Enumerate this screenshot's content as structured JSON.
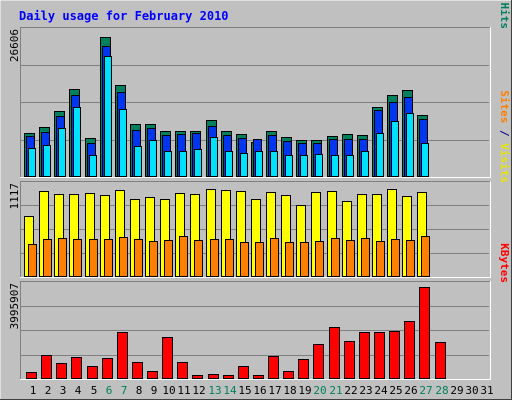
{
  "chart_data": {
    "type": "bar",
    "title": "Daily usage for February 2010",
    "days": [
      "1",
      "2",
      "3",
      "4",
      "5",
      "6",
      "7",
      "8",
      "9",
      "10",
      "11",
      "12",
      "13",
      "14",
      "15",
      "16",
      "17",
      "18",
      "19",
      "20",
      "21",
      "22",
      "23",
      "24",
      "25",
      "26",
      "27",
      "28",
      "29",
      "30",
      "31"
    ],
    "weekend_days": [
      "6",
      "7",
      "13",
      "14",
      "20",
      "21",
      "27",
      "28"
    ],
    "panels": [
      {
        "id": "hits",
        "ymax_label": "26606",
        "ymax": 26606,
        "right_labels": [
          {
            "text": "Pages",
            "color": "#00c8e6"
          },
          {
            "text": " / ",
            "color": "#000080"
          },
          {
            "text": "Files",
            "color": "#0040ff"
          },
          {
            "text": " / ",
            "color": "#000080"
          },
          {
            "text": "Hits",
            "color": "#008060"
          }
        ],
        "series": [
          {
            "name": "Hits",
            "color": "#00805c",
            "values": [
              8000,
              9200,
              12200,
              16100,
              7100,
              25600,
              16900,
              9800,
              9700,
              8400,
              8400,
              8500,
              10500,
              8400,
              7800,
              6400,
              8400,
              7300,
              6700,
              6800,
              7500,
              7800,
              7700,
              12900,
              15000,
              16000,
              11300,
              null,
              null,
              null,
              null
            ]
          },
          {
            "name": "Files",
            "color": "#0036f0",
            "values": [
              7500,
              8300,
              11200,
              15000,
              6200,
              24000,
              15600,
              8700,
              9000,
              7700,
              7900,
              8000,
              9300,
              7700,
              7100,
              7000,
              7700,
              6600,
              6200,
              6300,
              7000,
              7000,
              7000,
              12300,
              13800,
              14700,
              10700,
              null,
              null,
              null,
              null
            ]
          },
          {
            "name": "Pages",
            "color": "#00e0ff",
            "values": [
              5400,
              5900,
              9000,
              12800,
              4100,
              22200,
              12400,
              5700,
              6700,
              4800,
              4700,
              5200,
              7400,
              4800,
              4400,
              4700,
              4800,
              4000,
              4100,
              4200,
              4100,
              4000,
              4800,
              8000,
              10200,
              11800,
              6200,
              null,
              null,
              null,
              null
            ]
          }
        ]
      },
      {
        "id": "visits",
        "ymax_label": "1117",
        "ymax": 1117,
        "right_labels": [
          {
            "text": "Sites",
            "color": "#ff8000"
          },
          {
            "text": " / ",
            "color": "#000080"
          },
          {
            "text": "Visits",
            "color": "#e6e600"
          }
        ],
        "series": [
          {
            "name": "Visits",
            "color": "#ffff00",
            "values": [
              750,
              1050,
              1020,
              1020,
              1030,
              1010,
              1070,
              960,
              980,
              960,
              1030,
              1020,
              1080,
              1070,
              1050,
              960,
              1040,
              1010,
              880,
              1040,
              1060,
              930,
              1020,
              1020,
              1080,
              1000,
              1040,
              null,
              null,
              null,
              null
            ]
          },
          {
            "name": "Sites",
            "color": "#ff8000",
            "values": [
              410,
              470,
              480,
              470,
              470,
              470,
              490,
              470,
              440,
              450,
              500,
              460,
              470,
              470,
              430,
              430,
              480,
              430,
              430,
              440,
              480,
              460,
              480,
              440,
              470,
              460,
              500,
              null,
              null,
              null,
              null
            ]
          }
        ]
      },
      {
        "id": "kbytes",
        "ymax_label": "3995907",
        "ymax": 3995907,
        "right_labels": [
          {
            "text": "KBytes",
            "color": "#ff0000"
          }
        ],
        "series": [
          {
            "name": "KBytes",
            "color": "#ff0000",
            "values": [
              300000,
              1050000,
              700000,
              950000,
              570000,
              920000,
              2030000,
              720000,
              330000,
              1810000,
              730000,
              160000,
              210000,
              180000,
              570000,
              180000,
              970000,
              360000,
              880000,
              1490000,
              2240000,
              1650000,
              2030000,
              2030000,
              2070000,
              2480000,
              3960000,
              1590000,
              null,
              null,
              null
            ]
          }
        ]
      }
    ]
  }
}
